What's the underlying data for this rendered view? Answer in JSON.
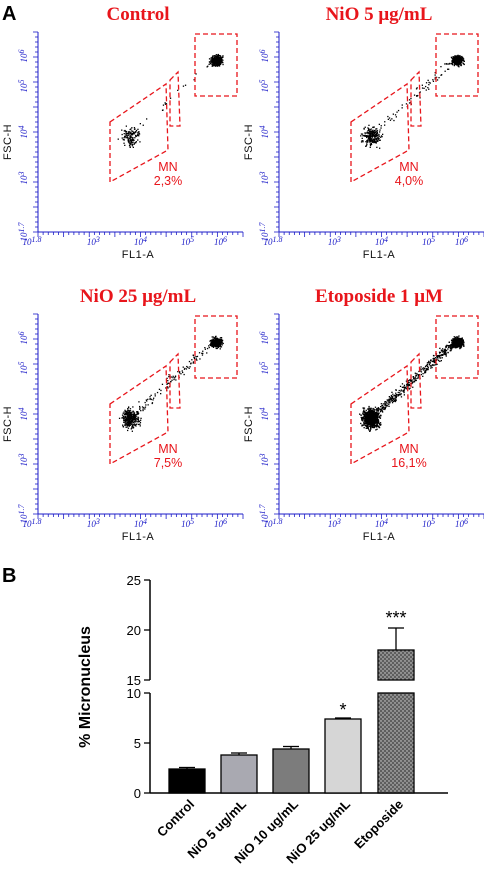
{
  "chart_data": [
    {
      "type": "scatter",
      "panel_label": "A",
      "plots": [
        {
          "title": "Control",
          "xlabel": "FL1-A",
          "ylabel": "FSC-H",
          "gate_label": "MN",
          "gate_value": "2,3%",
          "micronucleus_percent": 2.3
        },
        {
          "title": "NiO 5 μg/mL",
          "xlabel": "FL1-A",
          "ylabel": "FSC-H",
          "gate_label": "MN",
          "gate_value": "4,0%",
          "micronucleus_percent": 4.0
        },
        {
          "title": "NiO 25 μg/mL",
          "xlabel": "FL1-A",
          "ylabel": "FSC-H",
          "gate_label": "MN",
          "gate_value": "7,5%",
          "micronucleus_percent": 7.5
        },
        {
          "title": "Etoposide 1 μM",
          "xlabel": "FL1-A",
          "ylabel": "FSC-H",
          "gate_label": "MN",
          "gate_value": "16,1%",
          "micronucleus_percent": 16.1
        }
      ],
      "x_ticks": [
        "10^1.8",
        "10^3",
        "10^4",
        "10^5",
        "10^6"
      ],
      "y_ticks": [
        "10^1.7",
        "10^3",
        "10^4",
        "10^5",
        "10^6"
      ],
      "scale": "log",
      "colors": {
        "axes": "#1c1cc8",
        "gates": "#e8151b",
        "points": "#000000"
      }
    },
    {
      "type": "bar",
      "panel_label": "B",
      "categories": [
        "Control",
        "NiO 5 ug/mL",
        "NiO 10 ug/mL",
        "NiO 25 ug/mL",
        "Etoposide"
      ],
      "values": [
        2.4,
        3.8,
        4.4,
        7.4,
        18.0
      ],
      "errors": [
        0.15,
        0.2,
        0.25,
        0.1,
        2.2
      ],
      "significance": [
        "",
        "",
        "",
        "*",
        "***"
      ],
      "ylabel": "% Micronucleus",
      "y_axis_break": [
        10,
        15
      ],
      "yticks_lower": [
        0,
        5,
        10
      ],
      "yticks_upper": [
        15,
        20,
        25
      ],
      "ylim": [
        0,
        25
      ],
      "bar_fills": [
        "#000000",
        "#a9a9b1",
        "#7c7c7c",
        "#d6d6d6",
        "#5e5e5e"
      ],
      "bar_patterns": [
        "solid",
        "solid",
        "solid",
        "solid",
        "dotted"
      ]
    }
  ]
}
